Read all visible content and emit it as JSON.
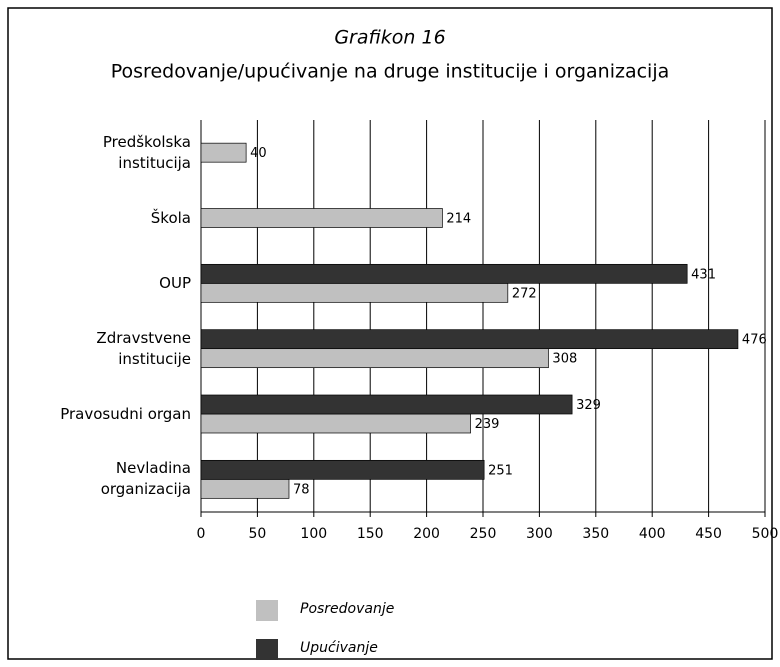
{
  "chart_data": {
    "type": "hbar",
    "title": "Grafikon 16",
    "subtitle": "Posredovanje/upućivanje na druge institucije i organizacija",
    "categories": [
      "Predškolska institucija",
      "Škola",
      "OUP",
      "Zdravstvene institucije",
      "Pravosudni organ",
      "Nevladina organizacija"
    ],
    "series": [
      {
        "name": "Posredovanje",
        "color": "#c0c0c0",
        "values": [
          40,
          214,
          272,
          308,
          239,
          78
        ]
      },
      {
        "name": "Upućivanje",
        "color": "#333333",
        "values": [
          null,
          null,
          431,
          476,
          329,
          251
        ]
      }
    ],
    "xlim": [
      0,
      500
    ],
    "xticks": [
      0,
      50,
      100,
      150,
      200,
      250,
      300,
      350,
      400,
      450,
      500
    ],
    "grid": true
  }
}
